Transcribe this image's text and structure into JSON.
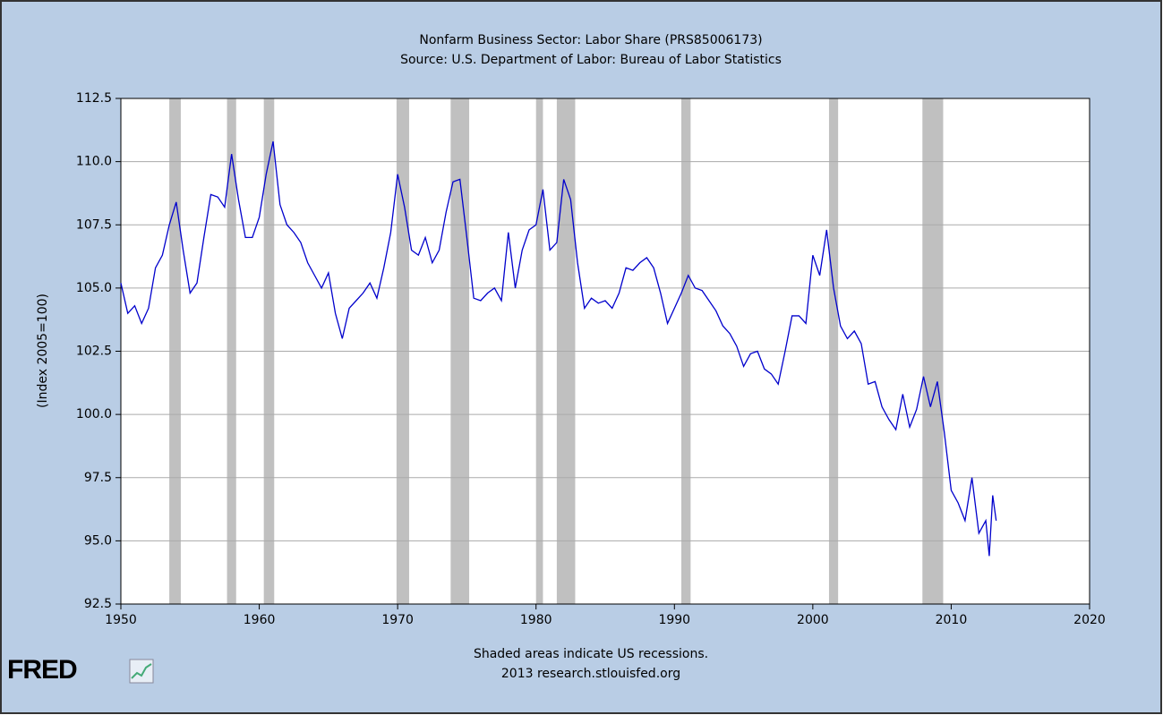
{
  "chart_data": {
    "type": "line",
    "title": "Nonfarm Business Sector: Labor Share (PRS85006173)",
    "subtitle": "Source: U.S. Department of Labor: Bureau of Labor Statistics",
    "y_label": "(Index 2005=100)",
    "note": "Shaded areas indicate US recessions.",
    "source": "2013 research.stlouisfed.org",
    "logo": "FRED",
    "x": [
      1950,
      1950.5,
      1951,
      1951.5,
      1952,
      1952.5,
      1953,
      1953.5,
      1954,
      1954.5,
      1955,
      1955.5,
      1956,
      1956.5,
      1957,
      1957.5,
      1958,
      1958.5,
      1959,
      1959.5,
      1960,
      1960.5,
      1961,
      1961.5,
      1962,
      1962.5,
      1963,
      1963.5,
      1964,
      1964.5,
      1965,
      1965.5,
      1966,
      1966.5,
      1967,
      1967.5,
      1968,
      1968.5,
      1969,
      1969.5,
      1970,
      1970.5,
      1971,
      1971.5,
      1972,
      1972.5,
      1973,
      1973.5,
      1974,
      1974.5,
      1975,
      1975.5,
      1976,
      1976.5,
      1977,
      1977.5,
      1978,
      1978.5,
      1979,
      1979.5,
      1980,
      1980.5,
      1981,
      1981.5,
      1982,
      1982.5,
      1983,
      1983.5,
      1984,
      1984.5,
      1985,
      1985.5,
      1986,
      1986.5,
      1987,
      1987.5,
      1988,
      1988.5,
      1989,
      1989.5,
      1990,
      1990.5,
      1991,
      1991.5,
      1992,
      1992.5,
      1993,
      1993.5,
      1994,
      1994.5,
      1995,
      1995.5,
      1996,
      1996.5,
      1997,
      1997.5,
      1998,
      1998.5,
      1999,
      1999.5,
      2000,
      2000.5,
      2001,
      2001.5,
      2002,
      2002.5,
      2003,
      2003.5,
      2004,
      2004.5,
      2005,
      2005.5,
      2006,
      2006.5,
      2007,
      2007.5,
      2008,
      2008.5,
      2009,
      2009.5,
      2010,
      2010.5,
      2011,
      2011.5,
      2012,
      2012.5,
      2012.75,
      2013,
      2013.25
    ],
    "series": [
      {
        "name": "Labor Share",
        "color": "#0000cc",
        "values": [
          105.2,
          104.0,
          104.3,
          103.6,
          104.2,
          105.8,
          106.3,
          107.5,
          108.4,
          106.5,
          104.8,
          105.2,
          107.0,
          108.7,
          108.6,
          108.2,
          110.3,
          108.5,
          107.0,
          107.0,
          107.8,
          109.5,
          110.8,
          108.3,
          107.5,
          107.2,
          106.8,
          106.0,
          105.5,
          105.0,
          105.6,
          104.0,
          103.0,
          104.2,
          104.5,
          104.8,
          105.2,
          104.6,
          105.8,
          107.2,
          109.5,
          108.2,
          106.5,
          106.3,
          107.0,
          106.0,
          106.5,
          108.0,
          109.2,
          109.3,
          107.0,
          104.6,
          104.5,
          104.8,
          105.0,
          104.5,
          107.2,
          105.0,
          106.5,
          107.3,
          107.5,
          108.9,
          106.5,
          106.8,
          109.3,
          108.5,
          106.0,
          104.2,
          104.6,
          104.4,
          104.5,
          104.2,
          104.8,
          105.8,
          105.7,
          106.0,
          106.2,
          105.8,
          104.8,
          103.6,
          104.2,
          104.8,
          105.5,
          105.0,
          104.9,
          104.5,
          104.1,
          103.5,
          103.2,
          102.7,
          101.9,
          102.4,
          102.5,
          101.8,
          101.6,
          101.2,
          102.5,
          103.9,
          103.9,
          103.6,
          106.3,
          105.5,
          107.3,
          105.0,
          103.5,
          103.0,
          103.3,
          102.8,
          101.2,
          101.3,
          100.3,
          99.8,
          99.4,
          100.8,
          99.5,
          100.2,
          101.5,
          100.3,
          101.3,
          99.3,
          97.0,
          96.5,
          95.8,
          97.5,
          95.3,
          95.8,
          94.4,
          96.8,
          95.8
        ]
      }
    ],
    "recessions": [
      [
        1953.5,
        1954.33
      ],
      [
        1957.67,
        1958.33
      ],
      [
        1960.33,
        1961.08
      ],
      [
        1969.92,
        1970.83
      ],
      [
        1973.83,
        1975.17
      ],
      [
        1980.0,
        1980.5
      ],
      [
        1981.5,
        1982.83
      ],
      [
        1990.5,
        1991.17
      ],
      [
        2001.17,
        2001.83
      ],
      [
        2007.92,
        2009.42
      ]
    ],
    "recession_color": "#c0c0c0",
    "xlim": [
      1950,
      2020
    ],
    "xticks": [
      1950,
      1960,
      1970,
      1980,
      1990,
      2000,
      2010,
      2020
    ],
    "ylim": [
      92.5,
      112.5
    ],
    "yticks": [
      92.5,
      {
        "value": 95,
        "label": "95.0"
      },
      97.5,
      {
        "value": 100,
        "label": "100.0"
      },
      102.5,
      {
        "value": 105,
        "label": "105.0"
      },
      107.5,
      {
        "value": 110,
        "label": "110.0"
      },
      112.5
    ],
    "grid": true
  }
}
